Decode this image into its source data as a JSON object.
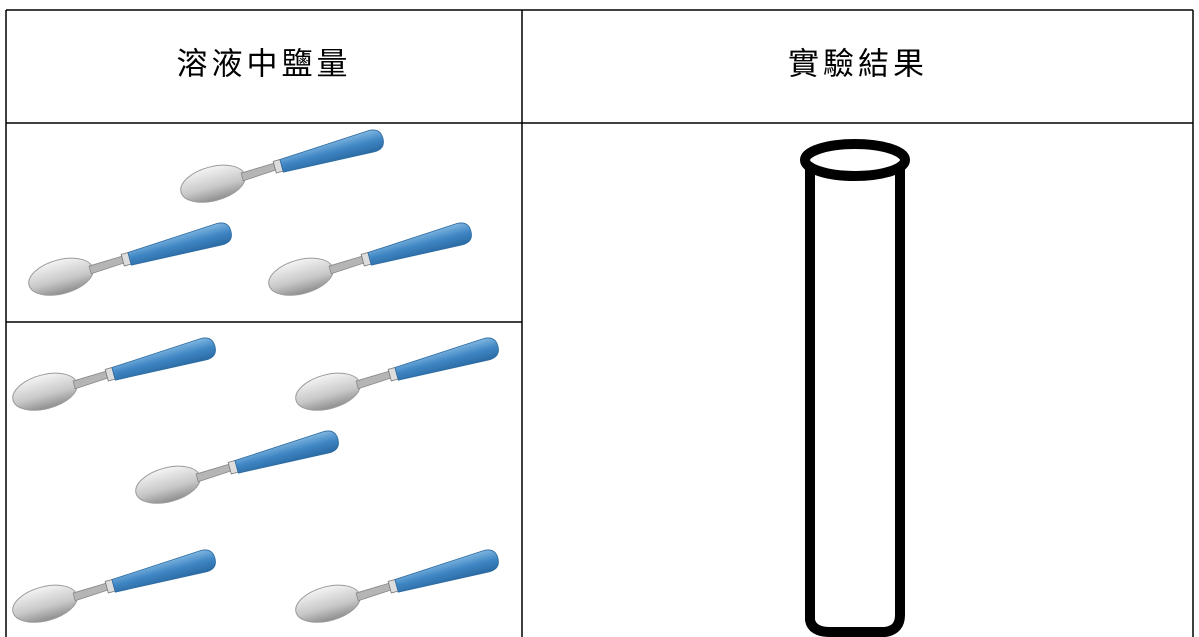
{
  "table": {
    "headers": [
      "溶液中鹽量",
      "實驗結果"
    ]
  }
}
